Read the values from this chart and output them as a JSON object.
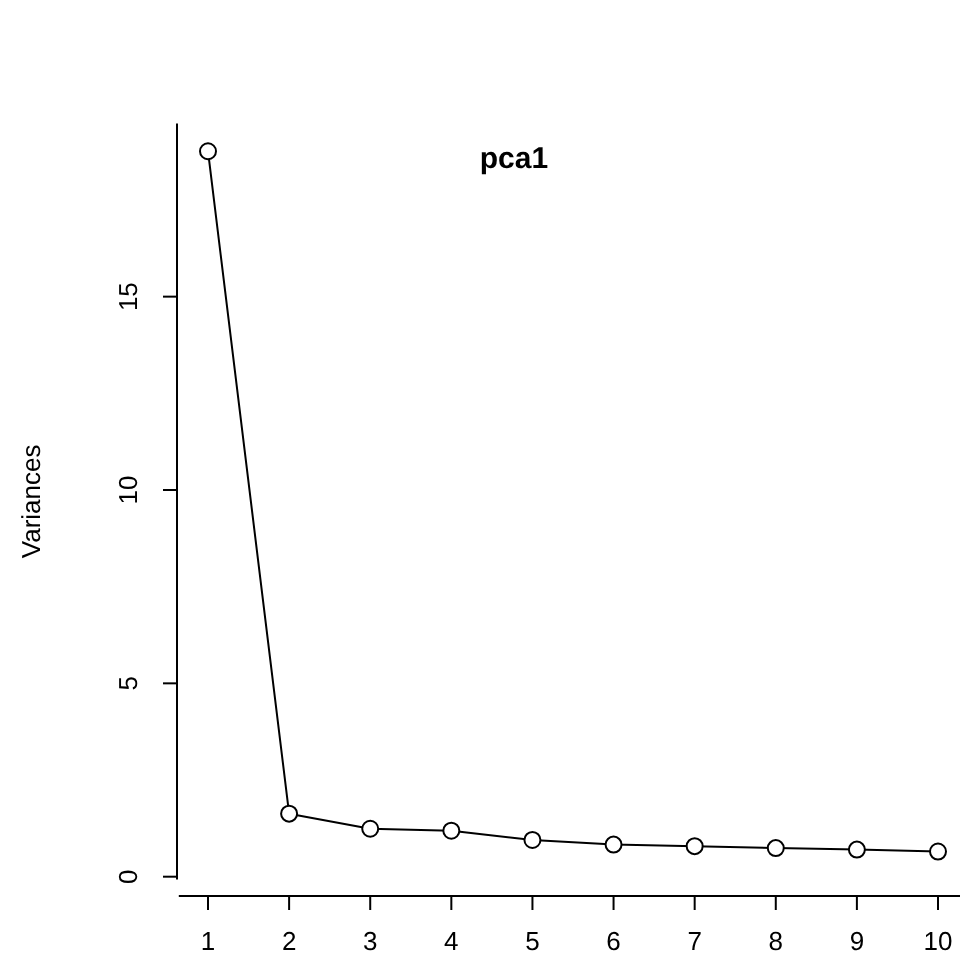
{
  "chart_data": {
    "type": "line",
    "title": "pca1",
    "ylabel": "Variances",
    "x": [
      1,
      2,
      3,
      4,
      5,
      6,
      7,
      8,
      9,
      10
    ],
    "series": [
      {
        "color": "#000000",
        "values": [
          18.76,
          1.63,
          1.24,
          1.19,
          0.95,
          0.83,
          0.79,
          0.74,
          0.7,
          0.65
        ]
      }
    ],
    "xlim": [
      0.64,
      10.36
    ],
    "xticks": [
      1,
      2,
      3,
      4,
      5,
      6,
      7,
      8,
      9,
      10
    ],
    "ylim": [
      -0.07,
      19.48
    ],
    "yticks": [
      0,
      5,
      10,
      15
    ],
    "marker": "circle",
    "line_style": "solid",
    "grid": false
  }
}
